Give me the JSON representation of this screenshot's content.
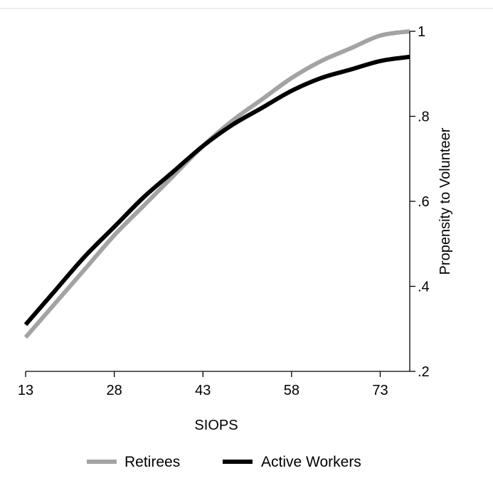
{
  "chart_data": {
    "type": "line",
    "title": "",
    "xlabel": "SIOPS",
    "ylabel": "Propensity to Volunteer",
    "x_ticks": [
      "13",
      "28",
      "43",
      "58",
      "73"
    ],
    "x_tick_values": [
      13,
      28,
      43,
      58,
      73
    ],
    "y_ticks": [
      ".2",
      ".4",
      ".6",
      ".8",
      "1"
    ],
    "y_tick_values": [
      0.2,
      0.4,
      0.6,
      0.8,
      1.0
    ],
    "xlim": [
      13,
      78
    ],
    "ylim": [
      0.2,
      1.0
    ],
    "y_axis_side": "right",
    "grid": false,
    "legend_position": "bottom",
    "series": [
      {
        "name": "Retirees",
        "color": "#a3a3a3",
        "x": [
          13,
          18,
          23,
          28,
          33,
          38,
          43,
          48,
          53,
          58,
          63,
          68,
          73,
          78
        ],
        "y": [
          0.28,
          0.36,
          0.44,
          0.52,
          0.59,
          0.66,
          0.73,
          0.79,
          0.84,
          0.89,
          0.93,
          0.96,
          0.99,
          1.0
        ]
      },
      {
        "name": "Active Workers",
        "color": "#000000",
        "x": [
          13,
          18,
          23,
          28,
          33,
          38,
          43,
          48,
          53,
          58,
          63,
          68,
          73,
          78
        ],
        "y": [
          0.31,
          0.39,
          0.47,
          0.54,
          0.61,
          0.67,
          0.73,
          0.78,
          0.82,
          0.86,
          0.89,
          0.91,
          0.93,
          0.94
        ]
      }
    ]
  }
}
